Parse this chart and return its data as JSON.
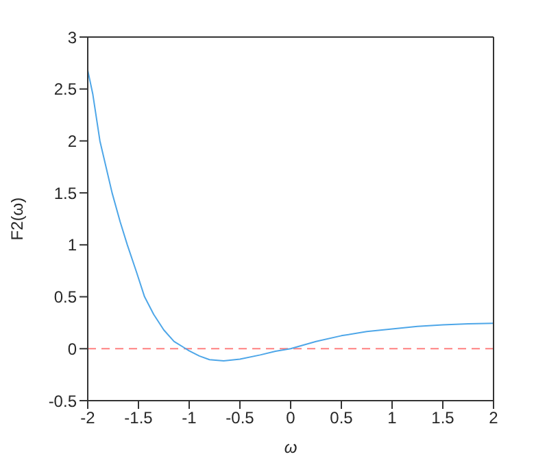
{
  "chart_data": {
    "type": "line",
    "xlabel": "ω",
    "ylabel": "F2(ω)",
    "xlim": [
      -2,
      2
    ],
    "xticks": [
      -2,
      -1.5,
      -1,
      -0.5,
      0,
      0.5,
      1,
      1.5,
      2
    ],
    "ylim": [
      -0.5,
      3
    ],
    "yticks": [
      -0.5,
      0,
      0.5,
      1,
      1.5,
      2,
      2.5,
      3
    ],
    "grid": false,
    "legend": false,
    "marker": "none",
    "line_style": "solid",
    "x": [
      -2,
      -1.95,
      -1.88,
      -1.82,
      -1.76,
      -1.68,
      -1.61,
      -1.52,
      -1.44,
      -1.35,
      -1.25,
      -1.15,
      -1.05,
      -1.0,
      -0.9,
      -0.8,
      -0.66,
      -0.5,
      -0.3,
      -0.15,
      0,
      0.25,
      0.5,
      0.75,
      1,
      1.25,
      1.5,
      1.75,
      2
    ],
    "series": [
      {
        "color": "#4da6e8",
        "values": [
          2.68,
          2.45,
          2.0,
          1.75,
          1.5,
          1.22,
          1.0,
          0.74,
          0.5,
          0.33,
          0.18,
          0.07,
          0.01,
          -0.02,
          -0.07,
          -0.105,
          -0.117,
          -0.1,
          -0.06,
          -0.025,
          0,
          0.07,
          0.125,
          0.165,
          0.19,
          0.215,
          0.23,
          0.24,
          0.245
        ]
      }
    ],
    "ref_lines": [
      {
        "axis": "y",
        "value": 0,
        "color": "#ff8080",
        "line_style": "dashed"
      }
    ]
  }
}
